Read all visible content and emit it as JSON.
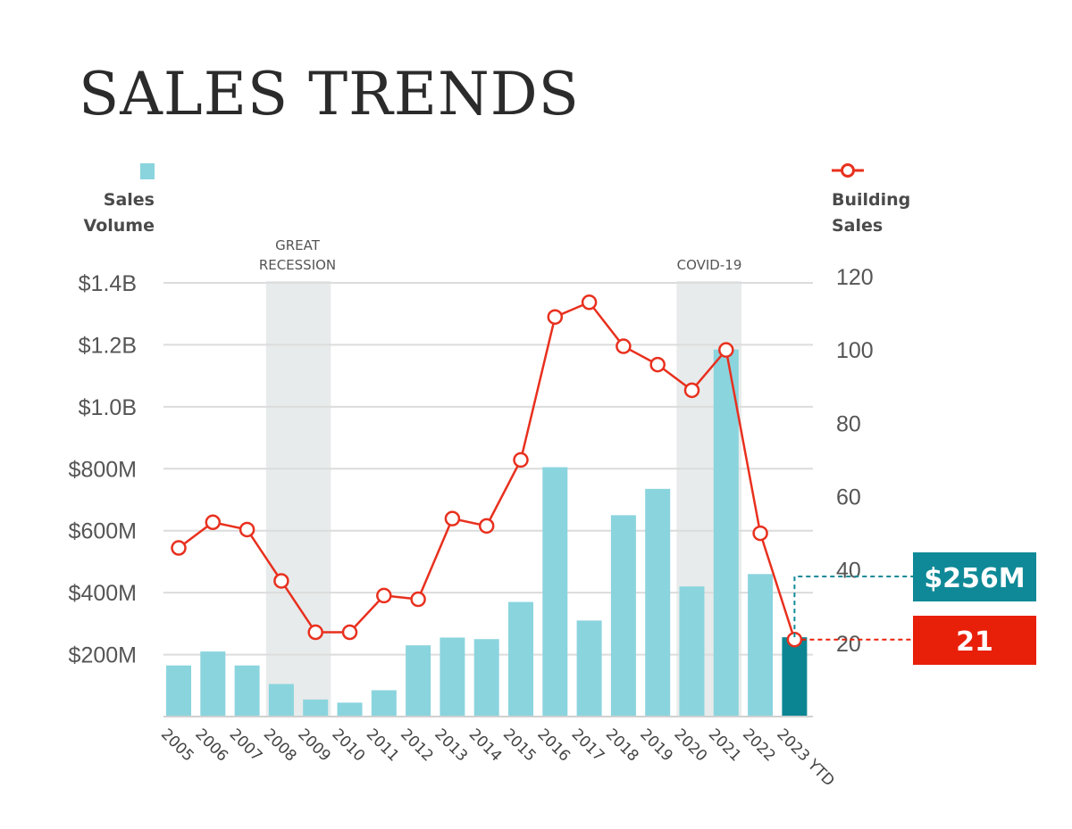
{
  "title": "SALES TRENDS",
  "colors": {
    "bar": "#8ad4de",
    "bar_highlight": "#0c8593",
    "line": "#e8301e",
    "grid": "#dcdcdc",
    "period_band": "#e7ebeb",
    "callout_volume": "#0f8997",
    "callout_sales": "#e8200a"
  },
  "legend": {
    "left": {
      "label_line1": "Sales",
      "label_line2": "Volume",
      "icon": "square-swatch-icon"
    },
    "right": {
      "label_line1": "Building",
      "label_line2": "Sales",
      "icon": "circle-marker-line-icon"
    }
  },
  "annotations": {
    "recession_line1": "GREAT",
    "recession_line2": "RECESSION",
    "covid": "COVID-19"
  },
  "callouts": {
    "volume": "$256M",
    "sales": "21"
  },
  "chart_data": {
    "type": "bar",
    "categories": [
      "2005",
      "2006",
      "2007",
      "2008",
      "2009",
      "2010",
      "2011",
      "2012",
      "2013",
      "2014",
      "2015",
      "2016",
      "2017",
      "2018",
      "2019",
      "2020",
      "2021",
      "2022",
      "2023 YTD"
    ],
    "series": [
      {
        "name": "Sales Volume",
        "type": "bar",
        "axis": "left",
        "values": [
          165,
          210,
          165,
          105,
          55,
          45,
          85,
          230,
          255,
          250,
          370,
          805,
          310,
          650,
          735,
          420,
          1185,
          460,
          256
        ]
      },
      {
        "name": "Building Sales",
        "type": "line",
        "axis": "right",
        "values": [
          46,
          53,
          51,
          37,
          23,
          23,
          33,
          32,
          54,
          52,
          70,
          109,
          113,
          101,
          96,
          89,
          100,
          50,
          21
        ]
      }
    ],
    "y_left": {
      "label": "Sales Volume",
      "ylim": [
        0,
        1400
      ],
      "ticks": [
        200,
        400,
        600,
        800,
        1000,
        1200,
        1400
      ],
      "tick_labels": [
        "$200M",
        "$400M",
        "$600M",
        "$800M",
        "$1.0B",
        "$1.2B",
        "$1.4B"
      ]
    },
    "y_right": {
      "label": "Building Sales",
      "ylim": [
        0,
        120
      ],
      "ticks": [
        20,
        40,
        60,
        80,
        100,
        120
      ],
      "tick_labels": [
        "20",
        "40",
        "60",
        "80",
        "100",
        "120"
      ]
    },
    "shaded_periods": [
      {
        "start": "2008",
        "end": "2009",
        "label": "GREAT RECESSION"
      },
      {
        "start": "2020",
        "end": "2021",
        "label": "COVID-19"
      }
    ],
    "highlight_category": "2023 YTD",
    "grid": true,
    "legend_placement": "top"
  }
}
